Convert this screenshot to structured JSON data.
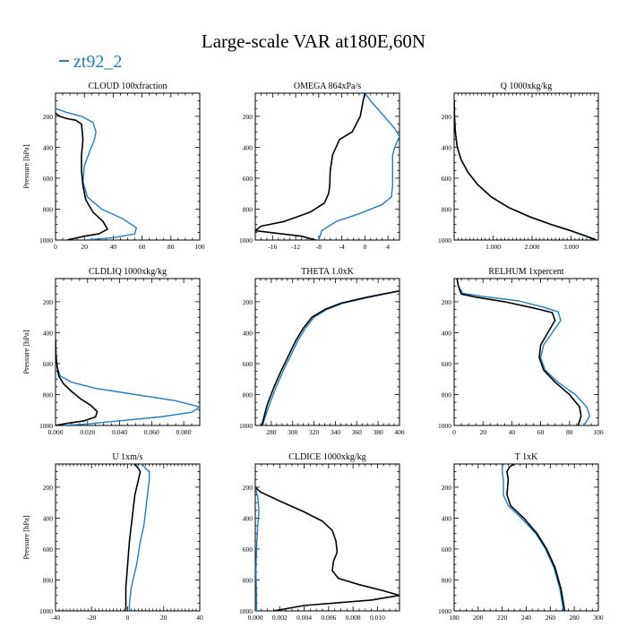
{
  "title": "Large-scale VAR at180E,60N",
  "legend": [
    {
      "name": "zt92_2",
      "color": "#2a7ab0"
    }
  ],
  "colors": {
    "series_ref": "#000000",
    "series_zt92_2": "#2a7ab0"
  },
  "chart_data": [
    {
      "type": "line",
      "title": "CLOUD  100xfraction",
      "ylabel": "Pressure [hPa]",
      "ylim": [
        1000,
        50
      ],
      "yticks": [
        200,
        400,
        600,
        800,
        1000
      ],
      "xlim": [
        0,
        100
      ],
      "xticks": [
        0,
        20,
        40,
        60,
        80,
        100
      ],
      "xticklabels": [
        "0",
        "20",
        "40",
        "60",
        "80",
        "100"
      ],
      "series": [
        {
          "color": "#000000",
          "x": [
            0,
            3,
            8,
            14,
            18,
            19,
            18,
            18,
            19,
            21,
            26,
            33,
            36,
            30,
            20,
            8
          ],
          "y": [
            180,
            200,
            215,
            225,
            250,
            350,
            450,
            550,
            650,
            740,
            820,
            880,
            930,
            960,
            975,
            1000
          ]
        },
        {
          "name": "zt92_2",
          "color": "#2a7ab0",
          "x": [
            0,
            8,
            18,
            26,
            28,
            27,
            24,
            20,
            19,
            22,
            32,
            46,
            56,
            55,
            40,
            20
          ],
          "y": [
            150,
            175,
            200,
            240,
            300,
            350,
            420,
            520,
            620,
            720,
            800,
            860,
            920,
            960,
            985,
            1000
          ]
        }
      ]
    },
    {
      "type": "line",
      "title": "OMEGA  864xPa/s",
      "ylabel": "",
      "ylim": [
        1000,
        50
      ],
      "yticks": [
        200,
        400,
        600,
        800,
        1000
      ],
      "xlim": [
        -19,
        6
      ],
      "xticks": [
        -16,
        -12,
        -8,
        -4,
        0,
        4
      ],
      "xticklabels": [
        "-16",
        "-12",
        "-8",
        "-4",
        "0",
        "4"
      ],
      "series": [
        {
          "color": "#000000",
          "x": [
            0,
            -0.3,
            -0.8,
            -2.2,
            -4.4,
            -5.6,
            -6.0,
            -6.1,
            -6.3,
            -7.0,
            -9.5,
            -14.0,
            -18.0,
            -19.0,
            -11.0,
            -8.5
          ],
          "y": [
            50,
            100,
            200,
            300,
            350,
            450,
            550,
            650,
            700,
            760,
            820,
            880,
            910,
            940,
            975,
            1000
          ]
        },
        {
          "name": "zt92_2",
          "color": "#2a7ab0",
          "x": [
            0,
            1.0,
            2.2,
            3.8,
            5.2,
            6.0,
            5.2,
            4.8,
            4.8,
            4.8,
            4.6,
            3.0,
            -1.0,
            -5.0,
            -7.5,
            -8.0
          ],
          "y": [
            50,
            100,
            150,
            220,
            280,
            330,
            400,
            450,
            550,
            650,
            720,
            770,
            830,
            880,
            940,
            1000
          ]
        }
      ]
    },
    {
      "type": "line",
      "title": "Q  1000xkg/kg",
      "ylabel": "",
      "ylim": [
        1000,
        50
      ],
      "yticks": [
        200,
        400,
        600,
        800,
        1000
      ],
      "xlim": [
        0,
        3700
      ],
      "xticks": [
        1000,
        2000,
        3000
      ],
      "xticklabels": [
        "1.000",
        "2.000",
        "3.000"
      ],
      "series": [
        {
          "color": "#000000",
          "x": [
            5,
            10,
            30,
            80,
            180,
            350,
            600,
            950,
            1400,
            1950,
            2500,
            3000,
            3400,
            3650
          ],
          "y": [
            100,
            200,
            300,
            400,
            480,
            560,
            640,
            720,
            790,
            850,
            900,
            940,
            975,
            1000
          ]
        },
        {
          "name": "zt92_2",
          "color": "#2a7ab0",
          "x": [
            5,
            10,
            30,
            80,
            180,
            350,
            600,
            950,
            1400,
            1930,
            2480,
            2980,
            3380,
            3620
          ],
          "y": [
            100,
            200,
            300,
            400,
            480,
            560,
            640,
            720,
            790,
            850,
            900,
            940,
            975,
            1000
          ]
        }
      ]
    },
    {
      "type": "line",
      "title": "CLDLIQ  1000xkg/kg",
      "ylabel": "Pressure [hPa]",
      "ylim": [
        1000,
        50
      ],
      "yticks": [
        200,
        400,
        600,
        800,
        1000
      ],
      "xlim": [
        0,
        0.09
      ],
      "xticks": [
        0,
        0.02,
        0.04,
        0.06,
        0.08
      ],
      "xticklabels": [
        "0.000",
        "0.020",
        "0.040",
        "0.060",
        "0.080"
      ],
      "series": [
        {
          "color": "#000000",
          "x": [
            0,
            0.0003,
            0.001,
            0.002,
            0.005,
            0.01,
            0.016,
            0.022,
            0.026,
            0.025,
            0.018,
            0.008,
            0.0
          ],
          "y": [
            450,
            550,
            620,
            680,
            730,
            780,
            830,
            870,
            910,
            945,
            970,
            985,
            1000
          ]
        },
        {
          "name": "zt92_2",
          "color": "#2a7ab0",
          "x": [
            0,
            0.0003,
            0.001,
            0.003,
            0.01,
            0.025,
            0.05,
            0.075,
            0.09,
            0.085,
            0.065,
            0.04,
            0.02,
            0.005
          ],
          "y": [
            450,
            550,
            620,
            680,
            720,
            760,
            800,
            840,
            880,
            915,
            945,
            970,
            990,
            1000
          ]
        }
      ]
    },
    {
      "type": "line",
      "title": "THETA  1.0xK",
      "ylabel": "",
      "ylim": [
        1000,
        50
      ],
      "yticks": [
        200,
        400,
        600,
        800,
        1000
      ],
      "xlim": [
        265,
        400
      ],
      "xticks": [
        280,
        300,
        320,
        340,
        360,
        380,
        400
      ],
      "xticklabels": [
        "280",
        "300",
        "320",
        "340",
        "360",
        "380",
        "400"
      ],
      "series": [
        {
          "color": "#000000",
          "x": [
            400,
            370,
            345,
            330,
            318,
            310,
            303,
            296,
            289,
            282,
            276,
            273,
            271
          ],
          "y": [
            130,
            170,
            210,
            250,
            300,
            370,
            450,
            550,
            650,
            760,
            870,
            950,
            1000
          ]
        },
        {
          "name": "zt92_2",
          "color": "#2a7ab0",
          "x": [
            400,
            372,
            347,
            332,
            320,
            312,
            305,
            298,
            291,
            284,
            278,
            274,
            272
          ],
          "y": [
            130,
            170,
            210,
            250,
            300,
            370,
            450,
            550,
            650,
            760,
            870,
            950,
            1000
          ]
        }
      ]
    },
    {
      "type": "line",
      "title": "RELHUM  1xpercent",
      "ylabel": "",
      "ylim": [
        1000,
        50
      ],
      "yticks": [
        200,
        400,
        600,
        800,
        1000
      ],
      "xlim": [
        0,
        100
      ],
      "xticks": [
        0,
        20,
        40,
        60,
        80,
        100
      ],
      "xticklabels": [
        "0",
        "20",
        "40",
        "60",
        "80",
        "100"
      ],
      "series": [
        {
          "color": "#000000",
          "x": [
            2,
            3,
            5,
            15,
            35,
            55,
            68,
            70,
            65,
            60,
            59,
            62,
            70,
            80,
            87,
            88,
            86
          ],
          "y": [
            50,
            100,
            150,
            170,
            200,
            240,
            270,
            320,
            400,
            480,
            560,
            640,
            720,
            800,
            880,
            940,
            1000
          ]
        },
        {
          "name": "zt92_2",
          "color": "#2a7ab0",
          "x": [
            2,
            3,
            6,
            20,
            45,
            62,
            72,
            74,
            68,
            62,
            60,
            63,
            72,
            84,
            92,
            94,
            90
          ],
          "y": [
            50,
            100,
            145,
            165,
            195,
            235,
            265,
            320,
            400,
            480,
            560,
            640,
            720,
            800,
            880,
            940,
            1000
          ]
        }
      ]
    },
    {
      "type": "line",
      "title": "U  1xm/s",
      "ylabel": "Pressure [hPa]",
      "ylim": [
        1000,
        50
      ],
      "yticks": [
        200,
        400,
        600,
        800,
        1000
      ],
      "xlim": [
        -40,
        40
      ],
      "xticks": [
        -40,
        -20,
        0,
        20,
        40
      ],
      "xticklabels": [
        "-40",
        "-20",
        "0",
        "20",
        "40"
      ],
      "series": [
        {
          "color": "#000000",
          "x": [
            4,
            6,
            7,
            6,
            4,
            3,
            2,
            1,
            0,
            -1,
            -1,
            -1
          ],
          "y": [
            50,
            80,
            100,
            150,
            250,
            350,
            450,
            550,
            700,
            850,
            950,
            1000
          ]
        },
        {
          "name": "zt92_2",
          "color": "#2a7ab0",
          "x": [
            8,
            10,
            12,
            12,
            11,
            10,
            9,
            7,
            5,
            2,
            1,
            1
          ],
          "y": [
            50,
            80,
            100,
            150,
            250,
            350,
            450,
            550,
            700,
            850,
            950,
            1000
          ]
        }
      ]
    },
    {
      "type": "line",
      "title": "CLDICE  1000xkg/kg",
      "ylabel": "",
      "ylim": [
        1000,
        50
      ],
      "yticks": [
        200,
        400,
        600,
        800,
        1000
      ],
      "xlim": [
        0,
        0.0118
      ],
      "xticks": [
        0,
        0.002,
        0.004,
        0.006,
        0.008,
        0.01
      ],
      "xticklabels": [
        "0.000",
        "0.002",
        "0.004",
        "0.006",
        "0.008",
        "0.010"
      ],
      "series": [
        {
          "color": "#000000",
          "x": [
            0,
            0.0004,
            0.002,
            0.004,
            0.0055,
            0.0063,
            0.0066,
            0.0067,
            0.0064,
            0.0063,
            0.0068,
            0.0085,
            0.0105,
            0.0118,
            0.0095,
            0.004,
            0.0015
          ],
          "y": [
            200,
            230,
            290,
            360,
            420,
            480,
            550,
            620,
            680,
            740,
            790,
            830,
            870,
            900,
            930,
            965,
            1000
          ]
        },
        {
          "name": "zt92_2",
          "color": "#2a7ab0",
          "x": [
            0,
            0.0002,
            0.0003,
            0.0002,
            0.0001,
            5e-05,
            0.0001,
            0.0001
          ],
          "y": [
            200,
            260,
            350,
            450,
            600,
            750,
            900,
            1000
          ]
        }
      ]
    },
    {
      "type": "line",
      "title": "T  1xK",
      "ylabel": "",
      "ylim": [
        1000,
        50
      ],
      "yticks": [
        200,
        400,
        600,
        800,
        1000
      ],
      "xlim": [
        180,
        300
      ],
      "xticks": [
        180,
        200,
        220,
        240,
        260,
        280,
        300
      ],
      "xticklabels": [
        "180",
        "200",
        "220",
        "240",
        "260",
        "280",
        "300"
      ],
      "series": [
        {
          "color": "#000000",
          "x": [
            230,
            226,
            224,
            225,
            224,
            227,
            238,
            249,
            257,
            264,
            269,
            272
          ],
          "y": [
            50,
            70,
            100,
            150,
            250,
            320,
            400,
            500,
            600,
            720,
            860,
            1000
          ]
        },
        {
          "name": "zt92_2",
          "color": "#2a7ab0",
          "x": [
            221,
            220,
            220,
            221,
            221,
            225,
            236,
            248,
            256,
            263,
            268,
            271
          ],
          "y": [
            50,
            70,
            100,
            150,
            250,
            320,
            400,
            500,
            600,
            720,
            860,
            1000
          ]
        }
      ]
    }
  ]
}
